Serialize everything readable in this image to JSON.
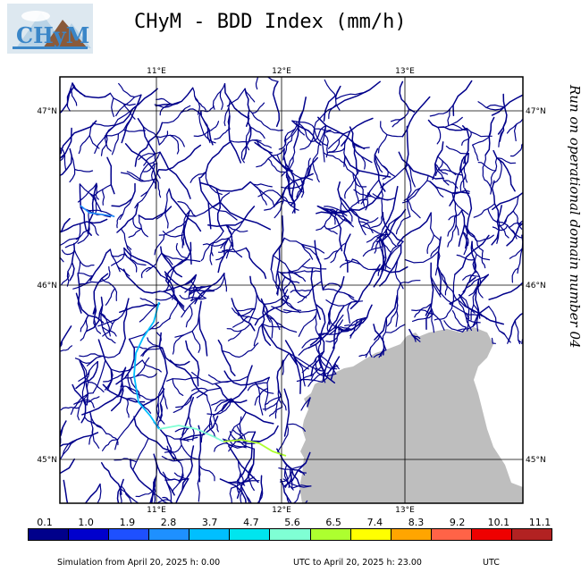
{
  "header": {
    "title": "CHyM - BDD Index (mm/h)",
    "logo_text": "CHyM",
    "logo_icon": "chym-logo-icon"
  },
  "side_label": "Run on operational domain number 04",
  "map": {
    "lon_ticks": [
      "11°E",
      "12°E",
      "13°E"
    ],
    "lat_ticks": [
      "47°N",
      "46°N",
      "45°N"
    ],
    "colors": {
      "river": "#00008b",
      "land_sea": "#bebebe",
      "frame": "#000000"
    }
  },
  "colorbar": {
    "labels": [
      "0.1",
      "1.0",
      "1.9",
      "2.8",
      "3.7",
      "4.7",
      "5.6",
      "6.5",
      "7.4",
      "8.3",
      "9.2",
      "10.1",
      "11.1"
    ],
    "colors": [
      "#00008b",
      "#0000cd",
      "#1e50ff",
      "#1e90ff",
      "#00bfff",
      "#00e5ee",
      "#7fffd4",
      "#adff2f",
      "#ffff00",
      "#ffa500",
      "#ff6347",
      "#ee0000",
      "#b22222"
    ]
  },
  "footer": {
    "sim_from": "Simulation from April 20, 2025 h: 0.00",
    "utc_to": "UTC to April 20, 2025 h: 23.00",
    "utc": "UTC"
  }
}
